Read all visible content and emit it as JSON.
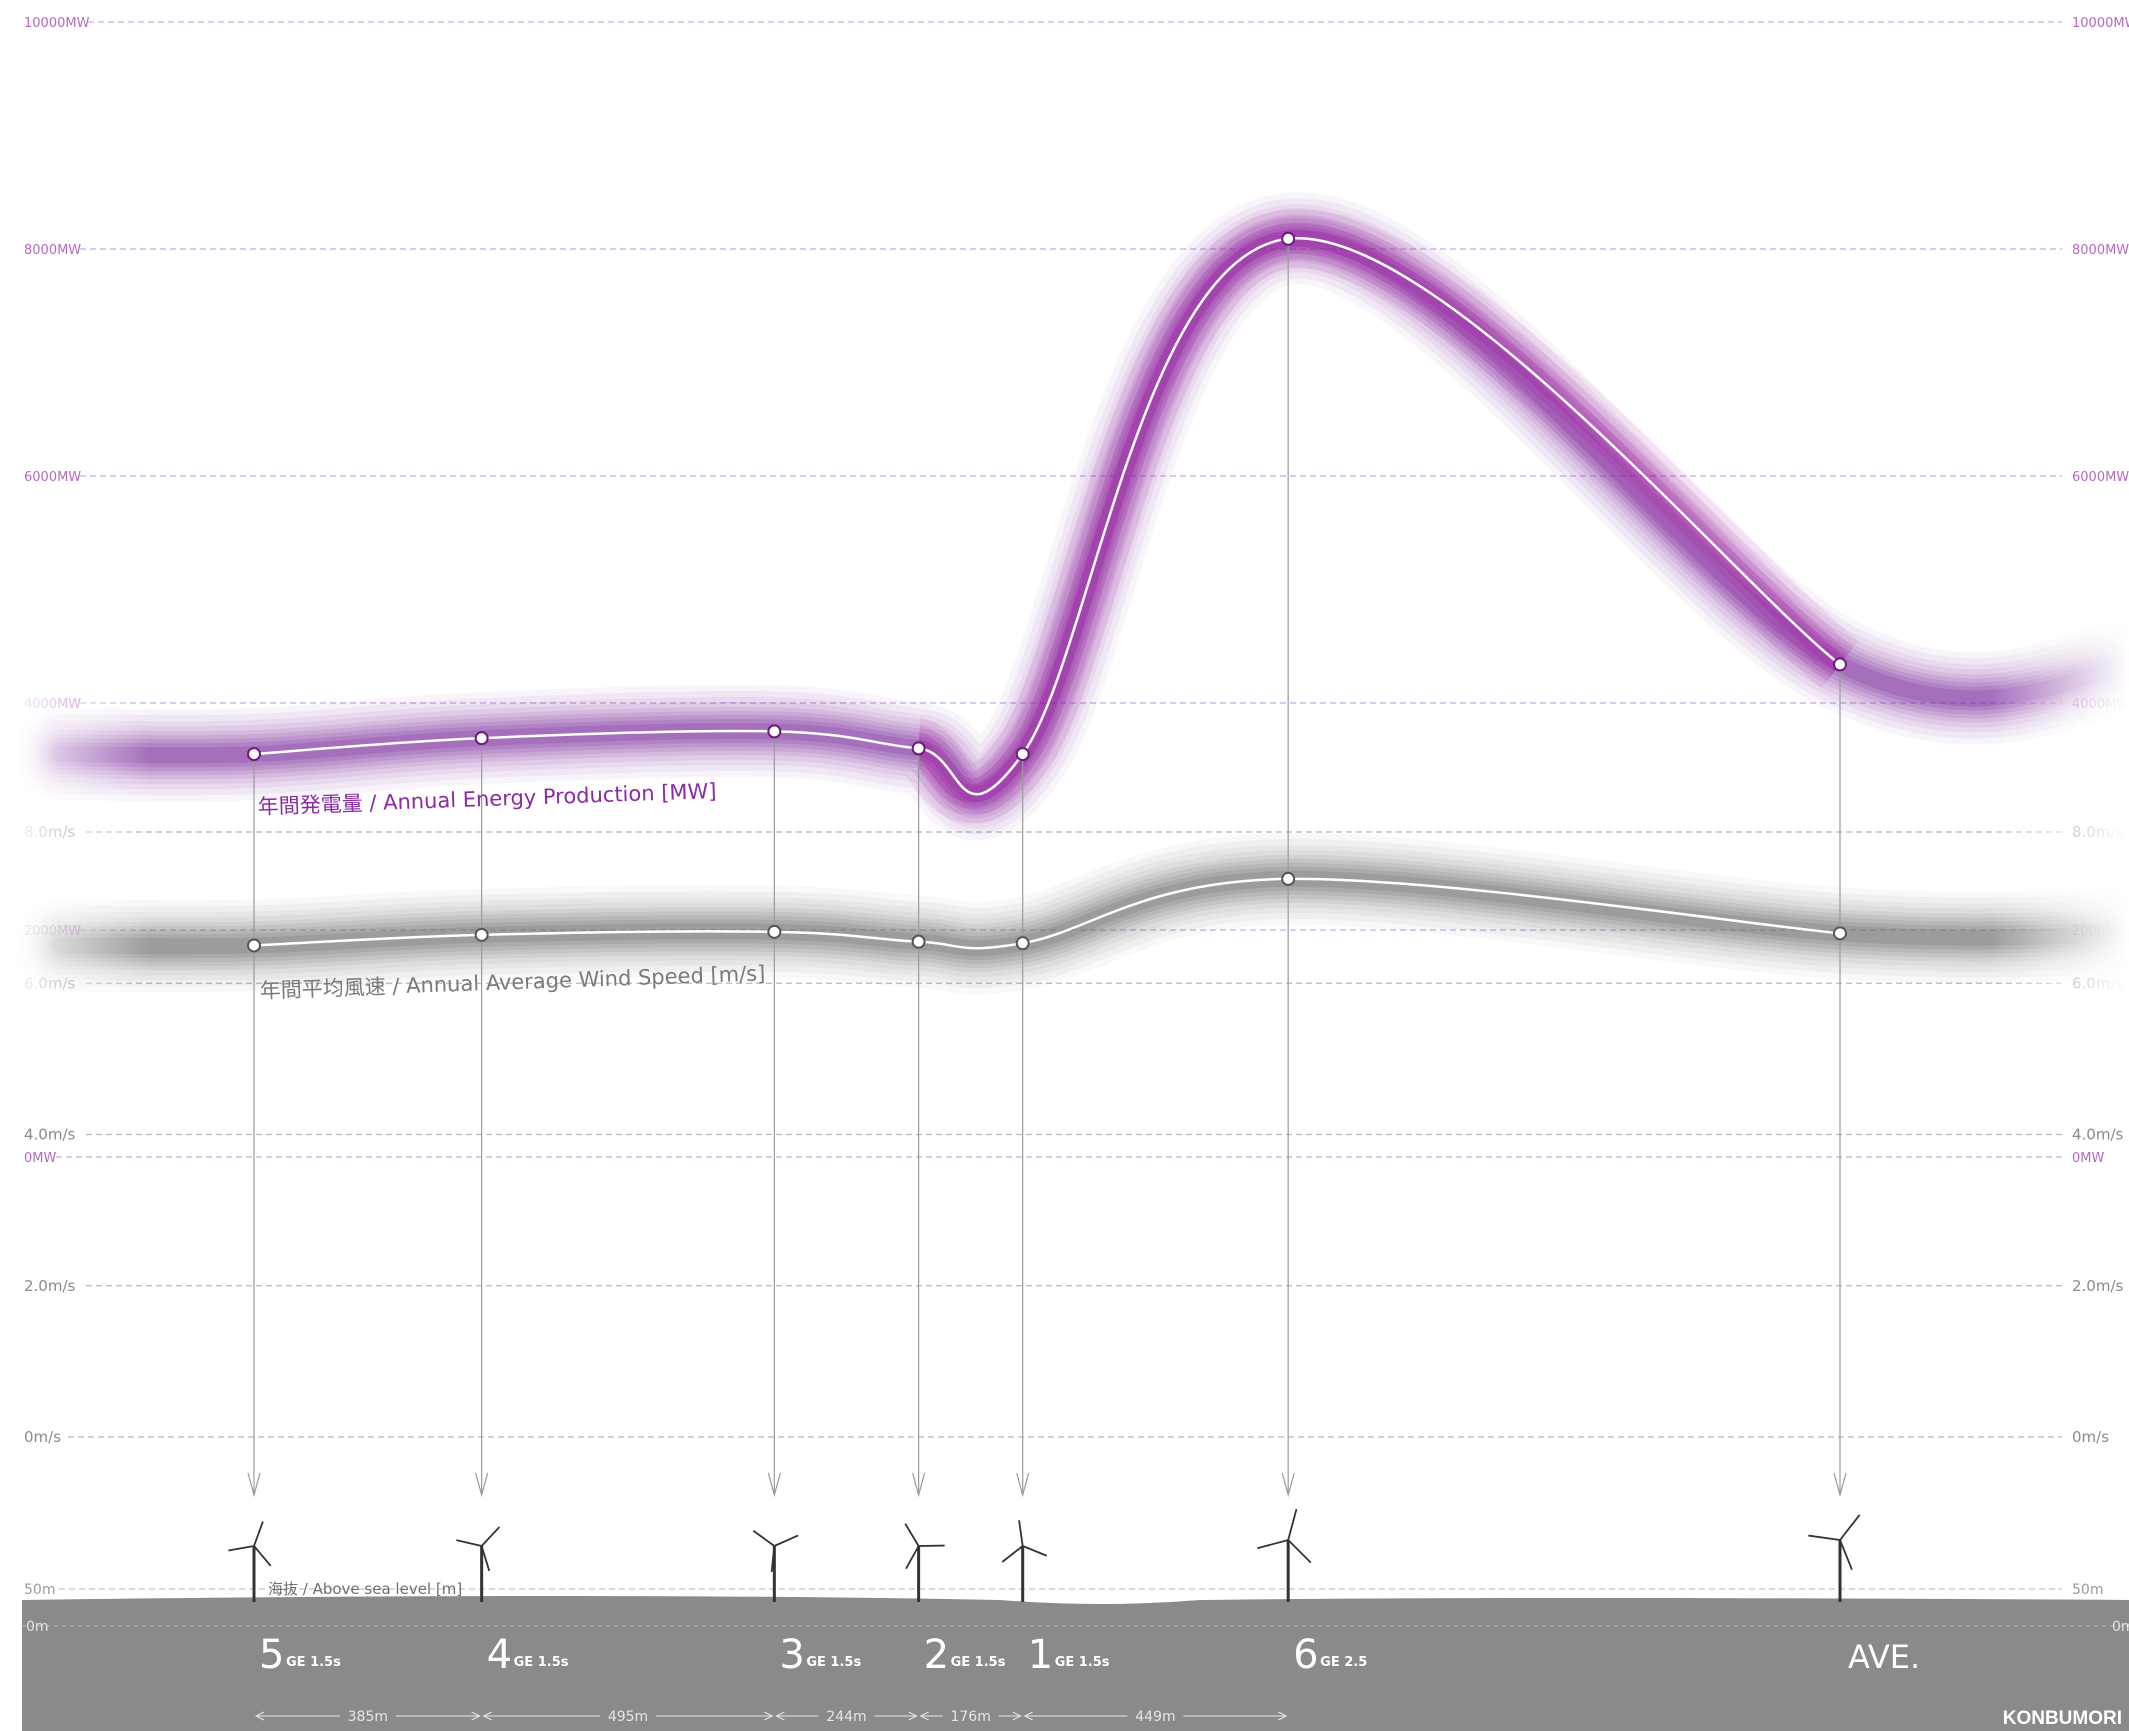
{
  "colors": {
    "energy": "#a0109a",
    "energy_band": "#7b2aa0",
    "wind": "#6e6e6e",
    "ground": "#8a8a8a",
    "grid_mw": "#c9a6e3",
    "grid_ms": "#b9b9b9"
  },
  "chart_data": {
    "type": "line",
    "categories": [
      "5",
      "4",
      "3",
      "2",
      "1",
      "6",
      "AVE."
    ],
    "series": [
      {
        "name": "年間発電量 / Annual Energy Production [MW]",
        "values": [
          3550,
          3690,
          3750,
          3600,
          3550,
          8090,
          4340
        ]
      },
      {
        "name": "年間平均風速 / Annual Average Wind Speed  [m/s]",
        "values": [
          6.5,
          6.64,
          6.68,
          6.55,
          6.53,
          7.38,
          6.66
        ]
      }
    ],
    "axes": {
      "energy": {
        "ylim": [
          0,
          10000
        ],
        "ticks": [
          "0MW",
          "2000MW",
          "4000MW",
          "6000MW",
          "8000MW",
          "10000MW"
        ]
      },
      "wind": {
        "ylim": [
          0,
          8
        ],
        "ticks": [
          "0m/s",
          "2.0m/s",
          "4.0m/s",
          "6.0m/s",
          "8.0m/s"
        ]
      },
      "elevation": {
        "ticks": [
          "0m",
          "50m"
        ]
      }
    },
    "labels": {
      "energy": "年間発電量 / Annual Energy Production [MW]",
      "wind": "年間平均風速 / Annual Average Wind Speed  [m/s]",
      "elevation": "海抜 / Above sea level [m]"
    },
    "turbines": [
      {
        "number": "5",
        "model": "GE 1.5s",
        "x": 0
      },
      {
        "number": "4",
        "model": "GE 1.5s",
        "x": 385
      },
      {
        "number": "3",
        "model": "GE 1.5s",
        "x": 880
      },
      {
        "number": "2",
        "model": "GE 1.5s",
        "x": 1124
      },
      {
        "number": "1",
        "model": "GE 1.5s",
        "x": 1300
      },
      {
        "number": "6",
        "model": "GE 2.5",
        "x": 1749
      },
      {
        "number": "AVE.",
        "model": "",
        "x": 2100
      }
    ],
    "distances": [
      "385m",
      "495m",
      "244m",
      "176m",
      "449m"
    ],
    "place": "KONBUMORI",
    "grid": true
  }
}
